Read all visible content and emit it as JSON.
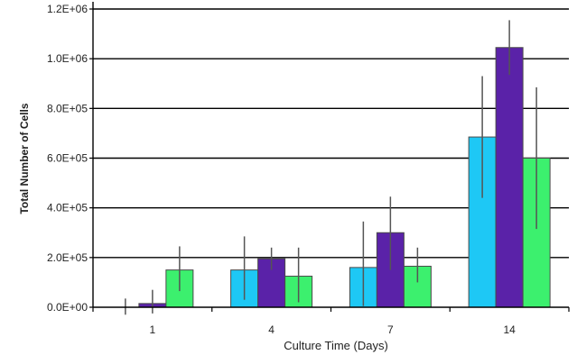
{
  "chart_data": {
    "type": "bar",
    "title": "",
    "xlabel": "Culture Time (Days)",
    "ylabel": "Total Number of Cells",
    "categories": [
      "1",
      "4",
      "7",
      "14"
    ],
    "ylim": [
      0,
      1200000
    ],
    "yticks": [
      0,
      200000,
      400000,
      600000,
      800000,
      1000000,
      1200000
    ],
    "ytick_labels": [
      "0.0E+00",
      "2.0E+05",
      "4.0E+05",
      "6.0E+05",
      "8.0E+05",
      "1.0E+06",
      "1.2E+06"
    ],
    "grid": true,
    "legend": "none",
    "series": [
      {
        "color": "#1ec8f5",
        "values": [
          0,
          150000,
          160000,
          685000
        ],
        "err_low": [
          -30000,
          30000,
          5000,
          440000
        ],
        "err_high": [
          35000,
          285000,
          345000,
          930000
        ]
      },
      {
        "color": "#5a22a8",
        "values": [
          15000,
          195000,
          300000,
          1045000
        ],
        "err_low": [
          -25000,
          150000,
          150000,
          935000
        ],
        "err_high": [
          70000,
          240000,
          445000,
          1155000
        ]
      },
      {
        "color": "#3cf06e",
        "values": [
          150000,
          125000,
          165000,
          600000
        ],
        "err_low": [
          65000,
          20000,
          100000,
          315000
        ],
        "err_high": [
          245000,
          240000,
          240000,
          885000
        ]
      }
    ]
  }
}
